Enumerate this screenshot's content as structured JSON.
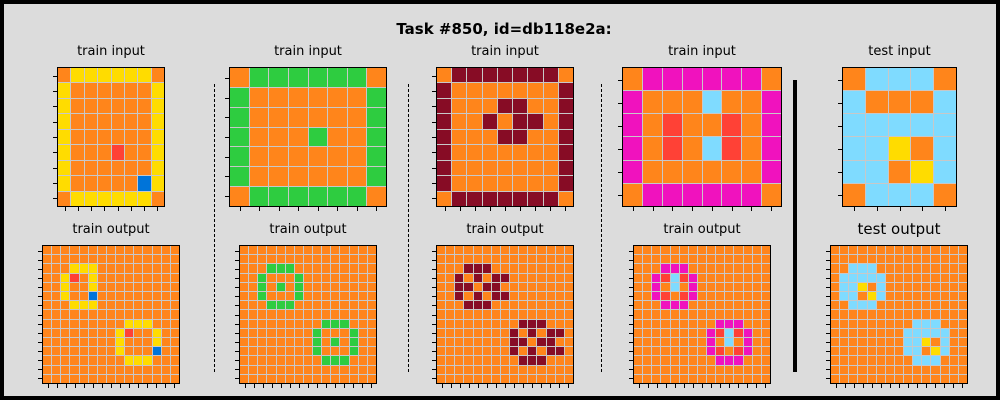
{
  "title": "Task #850, id=db118e2a:",
  "labels": {
    "train_input": "train input",
    "train_output": "train output",
    "test_input": "test input",
    "test_output": "test output"
  },
  "palette": {
    "O": "#ff851b",
    "Y": "#ffdc00",
    "B": "#0074d9",
    "R": "#870c25",
    "r": "#ff4136",
    "G": "#2ecc40",
    "M": "#f012be",
    "C": "#7fdbff"
  },
  "examples": [
    {
      "input": [
        "OYYYYYYO",
        "YOOOOOOY",
        "YOOOOOOY",
        "YOOOOOOY",
        "YOOOOOOY",
        "YOOOrOOY",
        "YOOOOOOY",
        "YOOOOOBY",
        "OYYYYYYO"
      ],
      "output": [
        "OOOOOOOOOOOOOOO",
        "OOOOOOOOOOOOOOO",
        "OOOYYYOOOOOOOOO",
        "OOYrOYOOOOOOOOO",
        "OOYOOYOOOOOOOOO",
        "OOYOOBOOOOOOOOO",
        "OOOYYYOOOOOOOOO",
        "OOOOOOOOOOOOOOO",
        "OOOOOOOOOYYYOOO",
        "OOOOOOOOYrOOYOO",
        "OOOOOOOOYOOOYOO",
        "OOOOOOOOYOOOBOO",
        "OOOOOOOOOYYYOOO",
        "OOOOOOOOOOOOOOO",
        "OOOOOOOOOOOOOOO"
      ]
    },
    {
      "input": [
        "OGGGGGGO",
        "GOOOOOOG",
        "GOOOOOOG",
        "GOOOGOOG",
        "GOOOOOOG",
        "GOOOOOOG",
        "OGGGGGGO"
      ],
      "output": [
        "OOOOOOOOOOOOOOO",
        "OOOOOOOOOOOOOOO",
        "OOOGGGOOOOOOOOO",
        "OOGOOOGOOOOOOOO",
        "OOGOGOGOOOOOOOO",
        "OOGOOOGOOOOOOOO",
        "OOOGGGOOOOOOOOO",
        "OOOOOOOOOOOOOOO",
        "OOOOOOOOOGGGOOO",
        "OOOOOOOOGOOOGOO",
        "OOOOOOOOGOGOGOO",
        "OOOOOOOOGOOOGOO",
        "OOOOOOOOOGGGOOO",
        "OOOOOOOOOOOOOOO",
        "OOOOOOOOOOOOOOO"
      ]
    },
    {
      "input": [
        "ORRRRRRRO",
        "ROOOOOOOR",
        "ROOORROOR",
        "ROORORROR",
        "ROOORROOR",
        "ROOOOOOOR",
        "ROOOOOOOR",
        "ROOOOOOOR",
        "ORRRRRRRO"
      ],
      "output": [
        "OOOOOOOOOOOOOOO",
        "OOOOOOOOOOOOOOO",
        "OOORRROOOOOOOOO",
        "OORORORROOOOOOO",
        "OORRORROOOOOOOO",
        "OORORORROOOOOOO",
        "OOORRROOOOOOOOO",
        "OOOOOOOOOOOOOOO",
        "OOOOOOOOORRROOO",
        "OOOOOOOORORORRO",
        "OOOOOOOORRORROO",
        "OOOOOOOORORORRO",
        "OOOOOOOOORRROOO",
        "OOOOOOOOOOOOOOO",
        "OOOOOOOOOOOOOOO"
      ]
    },
    {
      "input": [
        "OMMMMMMO",
        "MOOOCOOM",
        "MOrOOrOM",
        "MOrOCrOM",
        "MOOOOOOM",
        "OMMMMMMO"
      ],
      "output": [
        "OOOOOOOOOOOOOOO",
        "OOOOOOOOOOOOOOO",
        "OOOMMMOOOOOOOOO",
        "OOMrCrMOOOOOOOO",
        "OOMOCOMOOOOOOOO",
        "OOMrOrMOOOOOOOO",
        "OOOMMMOOOOOOOOO",
        "OOOOOOOOOOOOOOO",
        "OOOOOOOOOMMMOOO",
        "OOOOOOOOMrCrMOO",
        "OOOOOOOOMOCOMOO",
        "OOOOOOOOMrOrMOO",
        "OOOOOOOOOMMMOOO",
        "OOOOOOOOOOOOOOO",
        "OOOOOOOOOOOOOOO"
      ]
    }
  ],
  "test": {
    "input": [
      "OCCCO",
      "COOOC",
      "CCCCC",
      "CCYOC",
      "CCOYC",
      "OCCCO"
    ],
    "output": [
      "OOOOOOOOOOOOOOO",
      "OOOOOOOOOOOOOOO",
      "OOCCCOOOOOOOOOO",
      "OCCCCCOOOOOOOOO",
      "OCCYOCOOOOOOOOO",
      "OCCOYCOOOOOOOOO",
      "OOCCCOOOOOOOOOO",
      "OOOOOOOOOOOOOOO",
      "OOOOOOOOOCCCOOO",
      "OOOOOOOOCCCCCOO",
      "OOOOOOOOCCYOCOO",
      "OOOOOOOOCCOYCOO",
      "OOOOOOOOOCCCOOO",
      "OOOOOOOOOOOOOOO",
      "OOOOOOOOOOOOOOO"
    ]
  }
}
